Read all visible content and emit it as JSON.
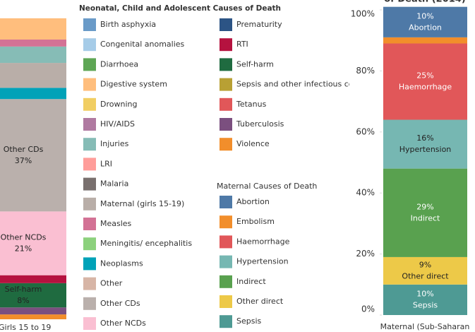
{
  "chart_data": [
    {
      "type": "stacked-bar",
      "categories": [
        "Girls 15 to 19"
      ],
      "series": [
        {
          "name": "Violence",
          "color": "#f28e2b",
          "values": [
            1.6
          ]
        },
        {
          "name": "Tuberculosis",
          "color": "#7b4f7f",
          "values": [
            2.3
          ]
        },
        {
          "name": "Self-harm",
          "color": "#1f6b40",
          "values": [
            8
          ],
          "value_labels": [
            "8%"
          ]
        },
        {
          "name": "RTI",
          "color": "#b5123f",
          "values": [
            2.6
          ]
        },
        {
          "name": "Other NCDs",
          "color": "#fabfd2",
          "values": [
            21
          ],
          "value_labels": [
            "21%"
          ]
        },
        {
          "name": "Other CDs",
          "color": "#bab0ac",
          "values": [
            37
          ],
          "value_labels": [
            "37%"
          ]
        },
        {
          "name": "Neoplasms",
          "color": "#00a2b8",
          "values": [
            3.7
          ]
        },
        {
          "name": "Maternal (girls 15-19)",
          "color": "#b9aea8",
          "values": [
            8.2
          ]
        },
        {
          "name": "Injuries",
          "color": "#86bcb6",
          "values": [
            5.4
          ]
        },
        {
          "name": "Measles",
          "color": "#d37295",
          "values": [
            2.3
          ]
        },
        {
          "name": "Digestive system",
          "color": "#ffbe7d",
          "values": [
            7
          ]
        }
      ]
    },
    {
      "type": "stacked-bar",
      "title": "of Death (2014)",
      "categories": [
        "Maternal (Sub-Saharan"
      ],
      "ylim": [
        0,
        100
      ],
      "yticks": [
        {
          "value": 0,
          "label": "0%"
        },
        {
          "value": 20,
          "label": "20%"
        },
        {
          "value": 40,
          "label": "40%"
        },
        {
          "value": 60,
          "label": "60%"
        },
        {
          "value": 80,
          "label": "80%"
        },
        {
          "value": 100,
          "label": "100%"
        }
      ],
      "series": [
        {
          "name": "Sepsis",
          "color": "#4e9a94",
          "values": [
            10
          ],
          "value_labels": [
            "10%"
          ]
        },
        {
          "name": "Other direct",
          "color": "#edc948",
          "values": [
            9
          ],
          "value_labels": [
            "9%"
          ]
        },
        {
          "name": "Indirect",
          "color": "#59a14f",
          "values": [
            29
          ],
          "value_labels": [
            "29%"
          ]
        },
        {
          "name": "Hypertension",
          "color": "#76b7b2",
          "values": [
            16
          ],
          "value_labels": [
            "16%"
          ]
        },
        {
          "name": "Haemorrhage",
          "color": "#e15759",
          "values": [
            25
          ],
          "value_labels": [
            "25%"
          ]
        },
        {
          "name": "Embolism",
          "color": "#f28e2b",
          "values": [
            2
          ]
        },
        {
          "name": "Abortion",
          "color": "#4e79a7",
          "values": [
            10
          ],
          "value_labels": [
            "10%"
          ]
        }
      ]
    }
  ],
  "legends": [
    {
      "title": "Neonatal, Child and Adolescent Causes of Death",
      "items": [
        {
          "name": "Birth asphyxia",
          "color": "#6a9bc8"
        },
        {
          "name": "Congenital anomalies",
          "color": "#a6cce8"
        },
        {
          "name": "Diarrhoea",
          "color": "#5ea655"
        },
        {
          "name": "Digestive system",
          "color": "#ffbe7d"
        },
        {
          "name": "Drowning",
          "color": "#f1ce63"
        },
        {
          "name": "HIV/AIDS",
          "color": "#b07aa1"
        },
        {
          "name": "Injuries",
          "color": "#86bcb6"
        },
        {
          "name": "LRI",
          "color": "#ff9d9a"
        },
        {
          "name": "Malaria",
          "color": "#79706e"
        },
        {
          "name": "Maternal (girls 15-19)",
          "color": "#b9aea8"
        },
        {
          "name": "Measles",
          "color": "#d37295"
        },
        {
          "name": "Meningitis/ encephalitis",
          "color": "#8cd17d"
        },
        {
          "name": "Neoplasms",
          "color": "#00a2b8"
        },
        {
          "name": "Other",
          "color": "#d7b5a6"
        },
        {
          "name": "Other CDs",
          "color": "#bab0ac"
        },
        {
          "name": "Other NCDs",
          "color": "#fabfd2"
        },
        {
          "name": "Prematurity",
          "color": "#2c5485"
        },
        {
          "name": "RTI",
          "color": "#b5123f"
        },
        {
          "name": "Self-harm",
          "color": "#1f6b40"
        },
        {
          "name": "Sepsis and other infectious co",
          "color": "#b8a034"
        },
        {
          "name": "Tetanus",
          "color": "#e15759"
        },
        {
          "name": "Tuberculosis",
          "color": "#7b4f7f"
        },
        {
          "name": "Violence",
          "color": "#f28e2b"
        }
      ]
    },
    {
      "title": "Maternal Causes of Death",
      "items": [
        {
          "name": "Abortion",
          "color": "#4e79a7"
        },
        {
          "name": "Embolism",
          "color": "#f28e2b"
        },
        {
          "name": "Haemorrhage",
          "color": "#e15759"
        },
        {
          "name": "Hypertension",
          "color": "#76b7b2"
        },
        {
          "name": "Indirect",
          "color": "#59a14f"
        },
        {
          "name": "Other direct",
          "color": "#edc948"
        },
        {
          "name": "Sepsis",
          "color": "#4e9a94"
        }
      ]
    }
  ]
}
